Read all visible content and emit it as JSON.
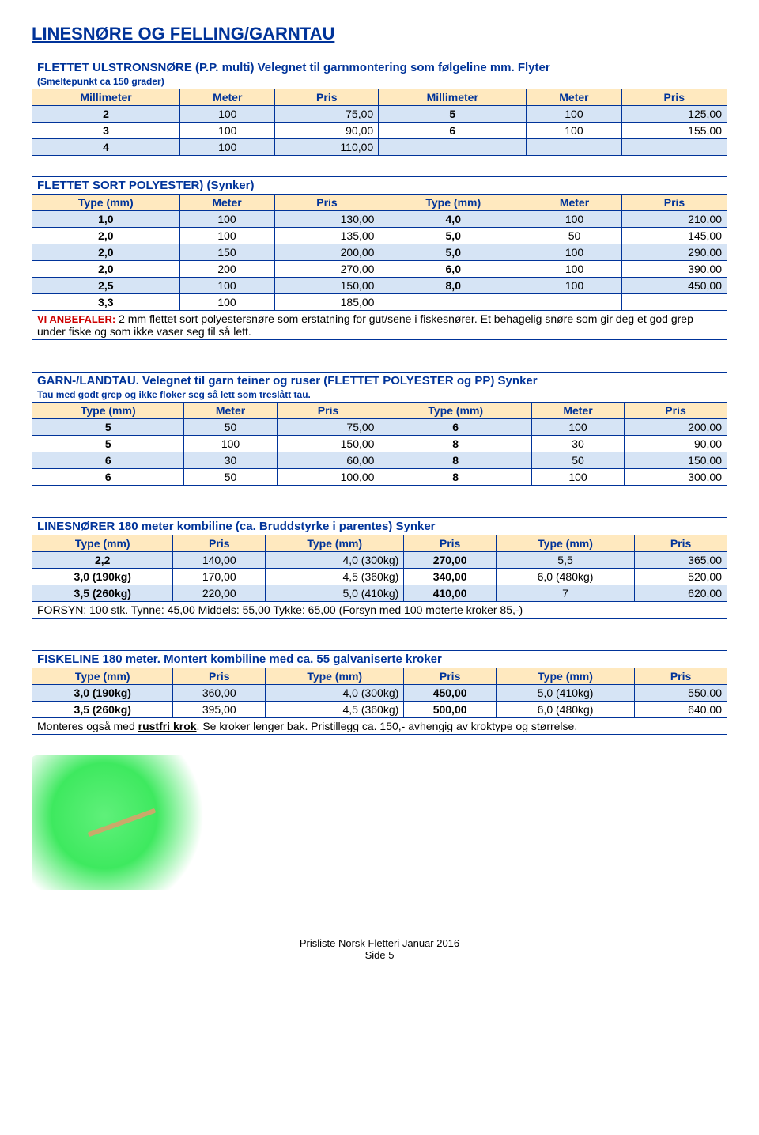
{
  "page_title": "LINESNØRE OG FELLING/GARNTAU",
  "footer_line1": "Prisliste Norsk Fletteri Januar 2016",
  "footer_line2": "Side 5",
  "t1": {
    "title": "FLETTET ULSTRONSNØRE (P.P. multi) Velegnet til garnmontering som følgeline mm. Flyter",
    "sub": "(Smeltepunkt ca 150 grader)",
    "h1": "Millimeter",
    "h2": "Meter",
    "h3": "Pris",
    "h4": "Millimeter",
    "h5": "Meter",
    "h6": "Pris",
    "rows": [
      [
        "2",
        "100",
        "75,00",
        "5",
        "100",
        "125,00"
      ],
      [
        "3",
        "100",
        "90,00",
        "6",
        "100",
        "155,00"
      ],
      [
        "4",
        "100",
        "110,00",
        "",
        "",
        ""
      ]
    ]
  },
  "t2": {
    "title": "FLETTET SORT POLYESTER) (Synker)",
    "h1": "Type (mm)",
    "h2": "Meter",
    "h3": "Pris",
    "h4": "Type (mm)",
    "h5": "Meter",
    "h6": "Pris",
    "rows": [
      [
        "1,0",
        "100",
        "130,00",
        "4,0",
        "100",
        "210,00"
      ],
      [
        "2,0",
        "100",
        "135,00",
        "5,0",
        "50",
        "145,00"
      ],
      [
        "2,0",
        "150",
        "200,00",
        "5,0",
        "100",
        "290,00"
      ],
      [
        "2,0",
        "200",
        "270,00",
        "6,0",
        "100",
        "390,00"
      ],
      [
        "2,5",
        "100",
        "150,00",
        "8,0",
        "100",
        "450,00"
      ],
      [
        "3,3",
        "100",
        "185,00",
        "",
        "",
        ""
      ]
    ],
    "note_label": "VI ANBEFALER:",
    "note": " 2 mm flettet sort polyestersnøre som erstatning for gut/sene i fiskesnører. Et behagelig snøre som gir deg et god grep under fiske og som ikke vaser seg til så lett."
  },
  "t3": {
    "title": "GARN-/LANDTAU. Velegnet til garn teiner og ruser (FLETTET POLYESTER og PP) Synker",
    "sub": "Tau med godt grep og ikke floker seg så lett som treslått tau.",
    "h1": "Type (mm)",
    "h2": "Meter",
    "h3": "Pris",
    "h4": "Type (mm)",
    "h5": "Meter",
    "h6": "Pris",
    "rows": [
      [
        "5",
        "50",
        "75,00",
        "6",
        "100",
        "200,00"
      ],
      [
        "5",
        "100",
        "150,00",
        "8",
        "30",
        "90,00"
      ],
      [
        "6",
        "30",
        "60,00",
        "8",
        "50",
        "150,00"
      ],
      [
        "6",
        "50",
        "100,00",
        "8",
        "100",
        "300,00"
      ]
    ]
  },
  "t4": {
    "title": "LINESNØRER 180 meter kombiline (ca. Bruddstyrke i parentes) Synker",
    "h1": "Type (mm)",
    "h2": "Pris",
    "h3": "Type (mm)",
    "h4": "Pris",
    "h5": "Type (mm)",
    "h6": "Pris",
    "rows": [
      {
        "cells": [
          "2,2",
          "140,00",
          "4,0 (300kg)",
          "270,00",
          "5,5",
          "365,00"
        ]
      },
      {
        "cells": [
          "3,0 (190kg)",
          "170,00",
          "4,5 (360kg)",
          "340,00",
          "6,0 (480kg)",
          "520,00"
        ]
      },
      {
        "cells": [
          "3,5 (260kg)",
          "220,00",
          "5,0 (410kg)",
          "410,00",
          "7",
          "620,00"
        ]
      }
    ],
    "extra": "FORSYN: 100 stk.   Tynne:  45,00    Middels:  55,00    Tykke:     65,00    (Forsyn med 100 moterte kroker 85,-)"
  },
  "t5": {
    "title": "FISKELINE 180 meter. Montert kombiline med ca. 55 galvaniserte kroker",
    "h1": "Type (mm)",
    "h2": "Pris",
    "h3": "Type (mm)",
    "h4": "Pris",
    "h5": "Type (mm)",
    "h6": "Pris",
    "rows": [
      {
        "cells": [
          "3,0 (190kg)",
          "360,00",
          "4,0 (300kg)",
          "450,00",
          "5,0 (410kg)",
          "550,00"
        ]
      },
      {
        "cells": [
          "3,5 (260kg)",
          "395,00",
          "4,5 (360kg)",
          "500,00",
          "6,0 (480kg)",
          "640,00"
        ]
      }
    ],
    "extra_pre": "Monteres også med ",
    "extra_bold": "rustfri krok",
    "extra_post": ". Se kroker lenger bak. Pristillegg ca. 150,- avhengig av kroktype og størrelse."
  },
  "colors": {
    "blue": "#003399",
    "header_bg": "#ffe9bf",
    "band_bg": "#d6e4f5",
    "red": "#cc0000"
  }
}
